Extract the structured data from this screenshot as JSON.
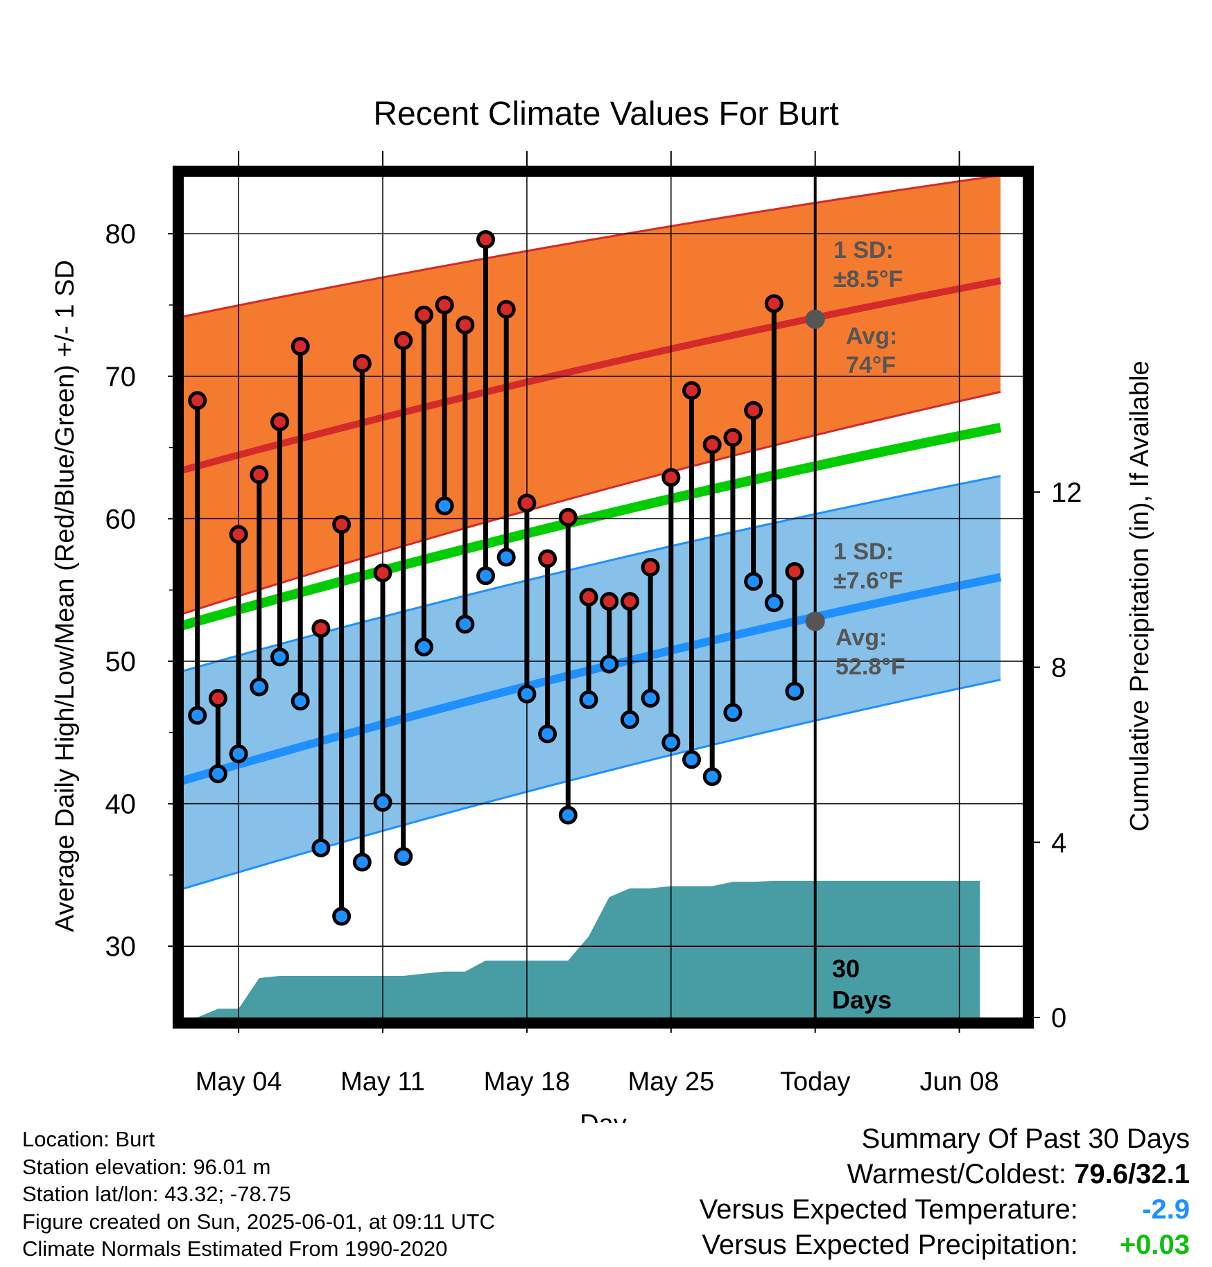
{
  "chart_data": {
    "type": "line",
    "title": "Recent Climate Values For Burt",
    "xlabel": "Day",
    "ylabel": "Average Daily High/Low/Mean (Red/Blue/Green) +/- 1 SD",
    "y2label": "Cumulative Precipitation (in), If Available",
    "ylim": [
      25,
      84
    ],
    "y2lim": [
      0,
      19.2
    ],
    "yticks": [
      "30",
      "40",
      "50",
      "60",
      "70",
      "80"
    ],
    "y2ticks": [
      "0",
      "4",
      "8",
      "12"
    ],
    "xticks": [
      "May 04",
      "May 11",
      "May 18",
      "May 25",
      "Today",
      "Jun 08"
    ],
    "days": [
      "May 02",
      "May 03",
      "May 04",
      "May 05",
      "May 06",
      "May 07",
      "May 08",
      "May 09",
      "May 10",
      "May 11",
      "May 12",
      "May 13",
      "May 14",
      "May 15",
      "May 16",
      "May 17",
      "May 18",
      "May 19",
      "May 20",
      "May 21",
      "May 22",
      "May 23",
      "May 24",
      "May 25",
      "May 26",
      "May 27",
      "May 28",
      "May 29",
      "May 30",
      "May 31"
    ],
    "high": [
      68.3,
      47.4,
      58.9,
      63.1,
      66.8,
      72.1,
      52.3,
      59.6,
      70.9,
      56.2,
      72.5,
      74.3,
      75.0,
      73.6,
      79.6,
      74.7,
      61.1,
      57.2,
      60.1,
      54.5,
      54.2,
      54.2,
      56.6,
      62.9,
      69.0,
      65.2,
      65.7,
      67.6,
      75.1,
      56.3
    ],
    "low": [
      46.2,
      42.1,
      43.5,
      48.2,
      50.3,
      47.2,
      36.9,
      32.1,
      35.9,
      40.1,
      36.3,
      51.0,
      60.9,
      52.6,
      56.0,
      57.3,
      47.7,
      44.9,
      39.2,
      47.3,
      49.8,
      45.9,
      47.4,
      44.3,
      43.1,
      41.9,
      46.4,
      55.6,
      54.1,
      47.9
    ],
    "normals": {
      "x_days": [
        "May 01",
        "Jun 10"
      ],
      "high_avg": [
        63.3,
        76.7
      ],
      "high_sd_upper": [
        74.1,
        84.1
      ],
      "high_sd_lower": [
        53.2,
        68.9
      ],
      "low_avg": [
        41.5,
        55.9
      ],
      "low_sd_upper": [
        49.2,
        63.0
      ],
      "low_sd_lower": [
        33.9,
        48.7
      ],
      "mean": [
        52.4,
        66.4
      ]
    },
    "precip_cumulative": [
      0.0,
      0.0,
      0.2,
      0.2,
      0.9,
      0.95,
      0.95,
      0.95,
      0.95,
      0.95,
      0.95,
      0.95,
      1.0,
      1.05,
      1.05,
      1.3,
      1.3,
      1.3,
      1.3,
      1.3,
      1.85,
      2.75,
      2.95,
      2.95,
      3.0,
      3.0,
      3.0,
      3.1,
      3.1,
      3.12,
      3.12,
      3.12,
      3.12,
      3.12,
      3.12,
      3.12,
      3.12,
      3.12,
      3.12,
      3.12
    ],
    "today": "Jun 01",
    "annotations": {
      "high_sd": "1 SD:",
      "high_sd_val": "±8.5°F",
      "high_avg": "Avg:",
      "high_avg_val": "74°F",
      "low_sd": "1 SD:",
      "low_sd_val": "±7.6°F",
      "low_avg": "Avg:",
      "low_avg_val": "52.8°F",
      "days_num": "30",
      "days_label": "Days"
    },
    "colors": {
      "high_band": "#f47a30",
      "high_line": "#d42a2a",
      "low_band": "#87c0e8",
      "low_line": "#1e90ff",
      "mean_line": "#00cc00",
      "precip": "#489da4",
      "high_dot": "#d42a2a",
      "low_dot": "#1e90ff",
      "annotation": "#555555"
    },
    "grid": true
  },
  "info": {
    "location": "Location: Burt",
    "elevation": "Station elevation: 96.01 m",
    "latlon": "Station lat/lon: 43.32; -78.75",
    "created": "Figure created on Sun, 2025-06-01, at 09:11 UTC",
    "normals": "Climate Normals Estimated From 1990-2020"
  },
  "summary": {
    "title": "Summary Of Past 30 Days",
    "warm_cold_label": "Warmest/Coldest:",
    "warm_cold_value": "79.6/32.1",
    "temp_label": "Versus Expected Temperature:",
    "temp_value": "-2.9",
    "precip_label": "Versus Expected Precipitation:",
    "precip_value": "+0.03"
  }
}
